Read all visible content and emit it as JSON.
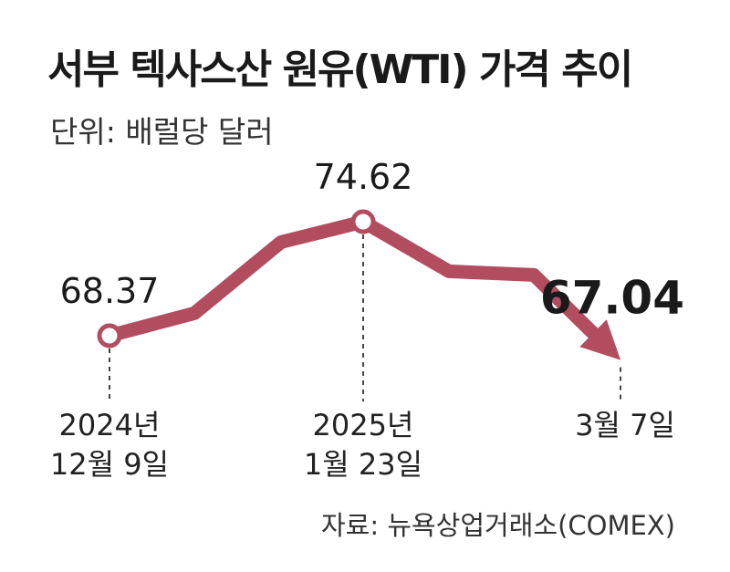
{
  "header": {
    "title": "서부 텍사스산 원유(WTI) 가격 추이",
    "unit": "단위: 배럴당 달러"
  },
  "source": "자료: 뉴욕상업거래소(COMEX)",
  "chart_data": {
    "type": "line",
    "title": "서부 텍사스산 원유(WTI) 가격 추이",
    "ylabel": "단위: 배럴당 달러",
    "ylim": [
      64,
      78
    ],
    "color": "#b24c5f",
    "series": [
      {
        "values": [
          68.37,
          69.6,
          73.5,
          74.62,
          71.9,
          71.7,
          67.04
        ]
      }
    ],
    "x_labels": [
      {
        "index": 0,
        "lines": [
          "2024년",
          "12월 9일"
        ]
      },
      {
        "index": 3,
        "lines": [
          "2025년",
          "1월 23일"
        ]
      },
      {
        "index": 6,
        "lines": [
          "3월 7일"
        ]
      }
    ],
    "value_labels": [
      {
        "index": 0,
        "text": "68.37",
        "emphasis": false
      },
      {
        "index": 3,
        "text": "74.62",
        "emphasis": false
      },
      {
        "index": 6,
        "text": "67.04",
        "emphasis": true
      }
    ]
  }
}
